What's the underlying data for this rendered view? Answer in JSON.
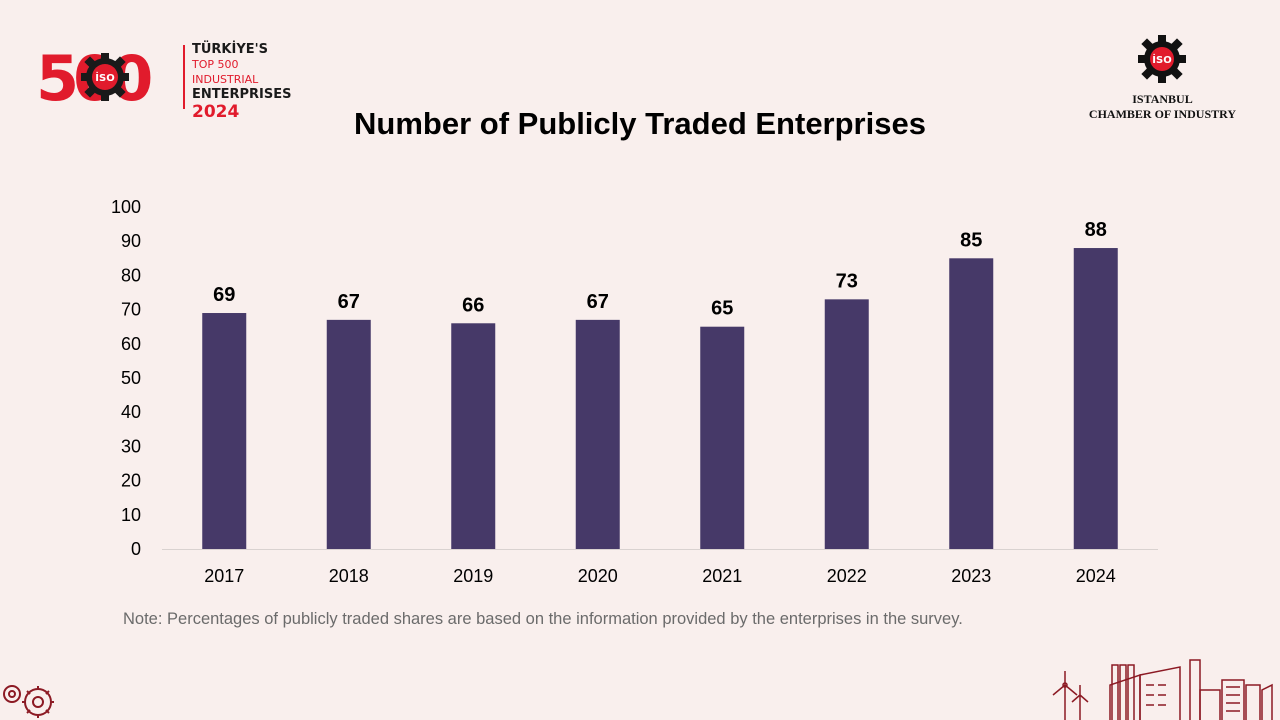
{
  "header": {
    "logo_left": {
      "number": "500",
      "line1": "TÜRKİYE'S",
      "line2": "TOP 500 INDUSTRIAL",
      "line3": "ENTERPRISES",
      "line4": "2024",
      "badge": "İSO"
    },
    "logo_right": {
      "badge": "İSO",
      "org_line1": "ISTANBUL",
      "org_line2": "CHAMBER OF INDUSTRY"
    }
  },
  "colors": {
    "bar": "#463968",
    "brand_red": "#e11b2c",
    "background": "#f9efed"
  },
  "chart_data": {
    "type": "bar",
    "title": "Number of Publicly Traded Enterprises",
    "categories": [
      "2017",
      "2018",
      "2019",
      "2020",
      "2021",
      "2022",
      "2023",
      "2024"
    ],
    "values": [
      69,
      67,
      66,
      67,
      65,
      73,
      85,
      88
    ],
    "data_labels": [
      "69",
      "67",
      "66",
      "67",
      "65",
      "73",
      "85",
      "88"
    ],
    "yticks": [
      "0",
      "10",
      "20",
      "30",
      "40",
      "50",
      "60",
      "70",
      "80",
      "90",
      "100"
    ],
    "ylim": [
      0,
      100
    ],
    "xlabel": "",
    "ylabel": "",
    "grid": false,
    "legend": "none"
  },
  "footer": {
    "note": "Note: Percentages of publicly traded shares are based on the information provided by the enterprises in the survey."
  }
}
